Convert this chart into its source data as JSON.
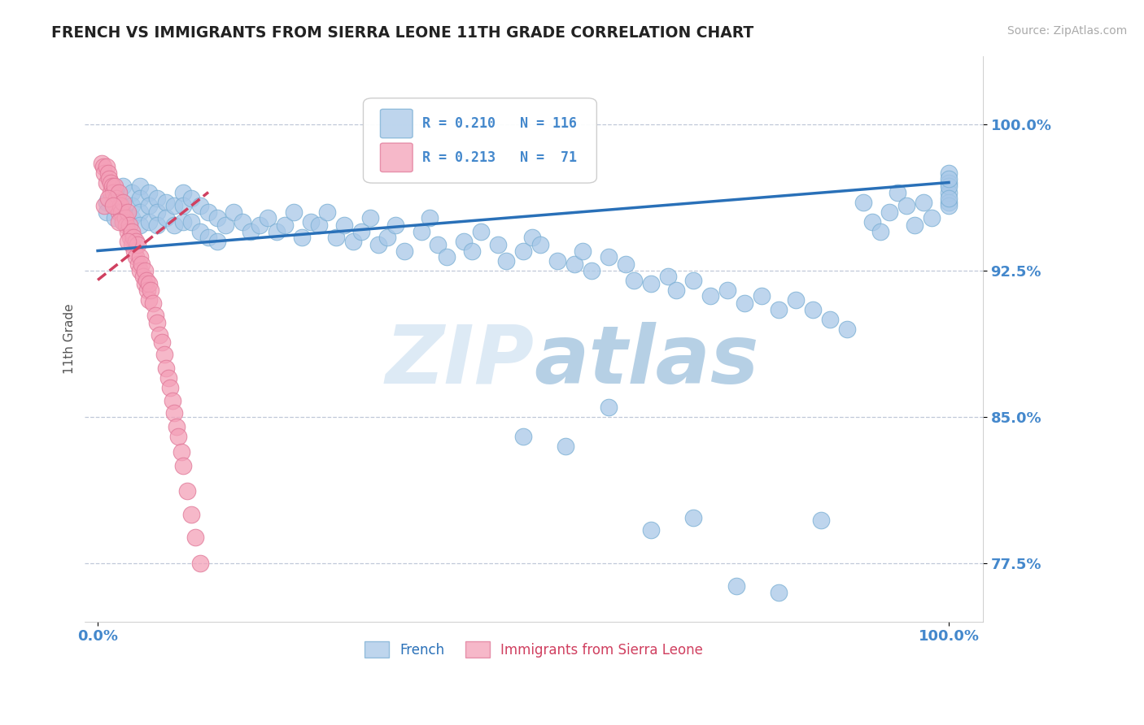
{
  "title": "FRENCH VS IMMIGRANTS FROM SIERRA LEONE 11TH GRADE CORRELATION CHART",
  "source_text": "Source: ZipAtlas.com",
  "ylabel": "11th Grade",
  "watermark_part1": "ZIP",
  "watermark_part2": "atlas",
  "ymin": 0.745,
  "ymax": 1.035,
  "xmin": -0.015,
  "xmax": 1.04,
  "blue_R": 0.21,
  "blue_N": 116,
  "pink_R": 0.213,
  "pink_N": 71,
  "blue_color": "#a8c8e8",
  "blue_edge_color": "#7aafd4",
  "pink_color": "#f4a0b8",
  "pink_edge_color": "#e07898",
  "blue_line_color": "#2970b8",
  "pink_line_color": "#d04060",
  "legend_blue_label": "French",
  "legend_pink_label": "Immigrants from Sierra Leone",
  "grid_color": "#c0c8d8",
  "title_color": "#222222",
  "tick_label_color": "#4488cc",
  "source_color": "#aaaaaa",
  "ylabel_color": "#555555",
  "ytick_labeled": [
    0.775,
    0.85,
    0.925,
    1.0
  ],
  "ytick_labeled_str": [
    "77.5%",
    "85.0%",
    "92.5%",
    "100.0%"
  ],
  "blue_line_x0": 0.0,
  "blue_line_x1": 1.0,
  "blue_line_y0": 0.935,
  "blue_line_y1": 0.97,
  "pink_line_x0": 0.0,
  "pink_line_x1": 0.13,
  "pink_line_y0": 0.92,
  "pink_line_y1": 0.965,
  "blue_x": [
    0.01,
    0.01,
    0.02,
    0.02,
    0.02,
    0.03,
    0.03,
    0.03,
    0.03,
    0.04,
    0.04,
    0.04,
    0.05,
    0.05,
    0.05,
    0.05,
    0.06,
    0.06,
    0.06,
    0.07,
    0.07,
    0.07,
    0.08,
    0.08,
    0.09,
    0.09,
    0.1,
    0.1,
    0.1,
    0.11,
    0.11,
    0.12,
    0.12,
    0.13,
    0.13,
    0.14,
    0.14,
    0.15,
    0.16,
    0.17,
    0.18,
    0.19,
    0.2,
    0.21,
    0.22,
    0.23,
    0.24,
    0.25,
    0.26,
    0.27,
    0.28,
    0.29,
    0.3,
    0.31,
    0.32,
    0.33,
    0.34,
    0.35,
    0.36,
    0.38,
    0.39,
    0.4,
    0.41,
    0.43,
    0.44,
    0.45,
    0.47,
    0.48,
    0.5,
    0.51,
    0.52,
    0.54,
    0.56,
    0.57,
    0.58,
    0.6,
    0.62,
    0.63,
    0.65,
    0.67,
    0.68,
    0.7,
    0.72,
    0.74,
    0.76,
    0.78,
    0.8,
    0.82,
    0.84,
    0.86,
    0.88,
    0.9,
    0.91,
    0.92,
    0.93,
    0.94,
    0.95,
    0.96,
    0.97,
    0.98,
    1.0,
    1.0,
    1.0,
    1.0,
    1.0,
    1.0,
    1.0,
    1.0,
    0.5,
    0.55,
    0.6,
    0.65,
    0.7,
    0.75,
    0.8,
    0.85
  ],
  "blue_y": [
    0.96,
    0.955,
    0.965,
    0.958,
    0.952,
    0.968,
    0.96,
    0.955,
    0.95,
    0.965,
    0.958,
    0.952,
    0.968,
    0.962,
    0.955,
    0.948,
    0.965,
    0.958,
    0.95,
    0.962,
    0.955,
    0.948,
    0.96,
    0.952,
    0.958,
    0.948,
    0.965,
    0.958,
    0.95,
    0.962,
    0.95,
    0.958,
    0.945,
    0.955,
    0.942,
    0.952,
    0.94,
    0.948,
    0.955,
    0.95,
    0.945,
    0.948,
    0.952,
    0.945,
    0.948,
    0.955,
    0.942,
    0.95,
    0.948,
    0.955,
    0.942,
    0.948,
    0.94,
    0.945,
    0.952,
    0.938,
    0.942,
    0.948,
    0.935,
    0.945,
    0.952,
    0.938,
    0.932,
    0.94,
    0.935,
    0.945,
    0.938,
    0.93,
    0.935,
    0.942,
    0.938,
    0.93,
    0.928,
    0.935,
    0.925,
    0.932,
    0.928,
    0.92,
    0.918,
    0.922,
    0.915,
    0.92,
    0.912,
    0.915,
    0.908,
    0.912,
    0.905,
    0.91,
    0.905,
    0.9,
    0.895,
    0.96,
    0.95,
    0.945,
    0.955,
    0.965,
    0.958,
    0.948,
    0.96,
    0.952,
    0.975,
    0.97,
    0.965,
    0.968,
    0.972,
    0.96,
    0.958,
    0.962,
    0.84,
    0.835,
    0.855,
    0.792,
    0.798,
    0.763,
    0.76,
    0.797
  ],
  "pink_x": [
    0.005,
    0.007,
    0.008,
    0.01,
    0.01,
    0.012,
    0.013,
    0.015,
    0.015,
    0.017,
    0.018,
    0.02,
    0.02,
    0.022,
    0.022,
    0.024,
    0.025,
    0.025,
    0.027,
    0.028,
    0.03,
    0.03,
    0.032,
    0.033,
    0.035,
    0.035,
    0.037,
    0.038,
    0.04,
    0.04,
    0.042,
    0.043,
    0.045,
    0.045,
    0.047,
    0.048,
    0.05,
    0.05,
    0.052,
    0.053,
    0.055,
    0.055,
    0.057,
    0.058,
    0.06,
    0.06,
    0.062,
    0.065,
    0.068,
    0.07,
    0.073,
    0.075,
    0.078,
    0.08,
    0.083,
    0.085,
    0.088,
    0.09,
    0.093,
    0.095,
    0.098,
    0.1,
    0.105,
    0.11,
    0.115,
    0.12,
    0.008,
    0.012,
    0.018,
    0.025,
    0.035
  ],
  "pink_y": [
    0.98,
    0.978,
    0.975,
    0.978,
    0.97,
    0.975,
    0.972,
    0.97,
    0.965,
    0.968,
    0.965,
    0.968,
    0.96,
    0.962,
    0.958,
    0.96,
    0.965,
    0.955,
    0.958,
    0.955,
    0.96,
    0.95,
    0.952,
    0.948,
    0.955,
    0.945,
    0.948,
    0.942,
    0.945,
    0.938,
    0.942,
    0.935,
    0.94,
    0.932,
    0.938,
    0.928,
    0.932,
    0.925,
    0.928,
    0.922,
    0.925,
    0.918,
    0.92,
    0.915,
    0.918,
    0.91,
    0.915,
    0.908,
    0.902,
    0.898,
    0.892,
    0.888,
    0.882,
    0.875,
    0.87,
    0.865,
    0.858,
    0.852,
    0.845,
    0.84,
    0.832,
    0.825,
    0.812,
    0.8,
    0.788,
    0.775,
    0.958,
    0.962,
    0.958,
    0.95,
    0.94
  ]
}
